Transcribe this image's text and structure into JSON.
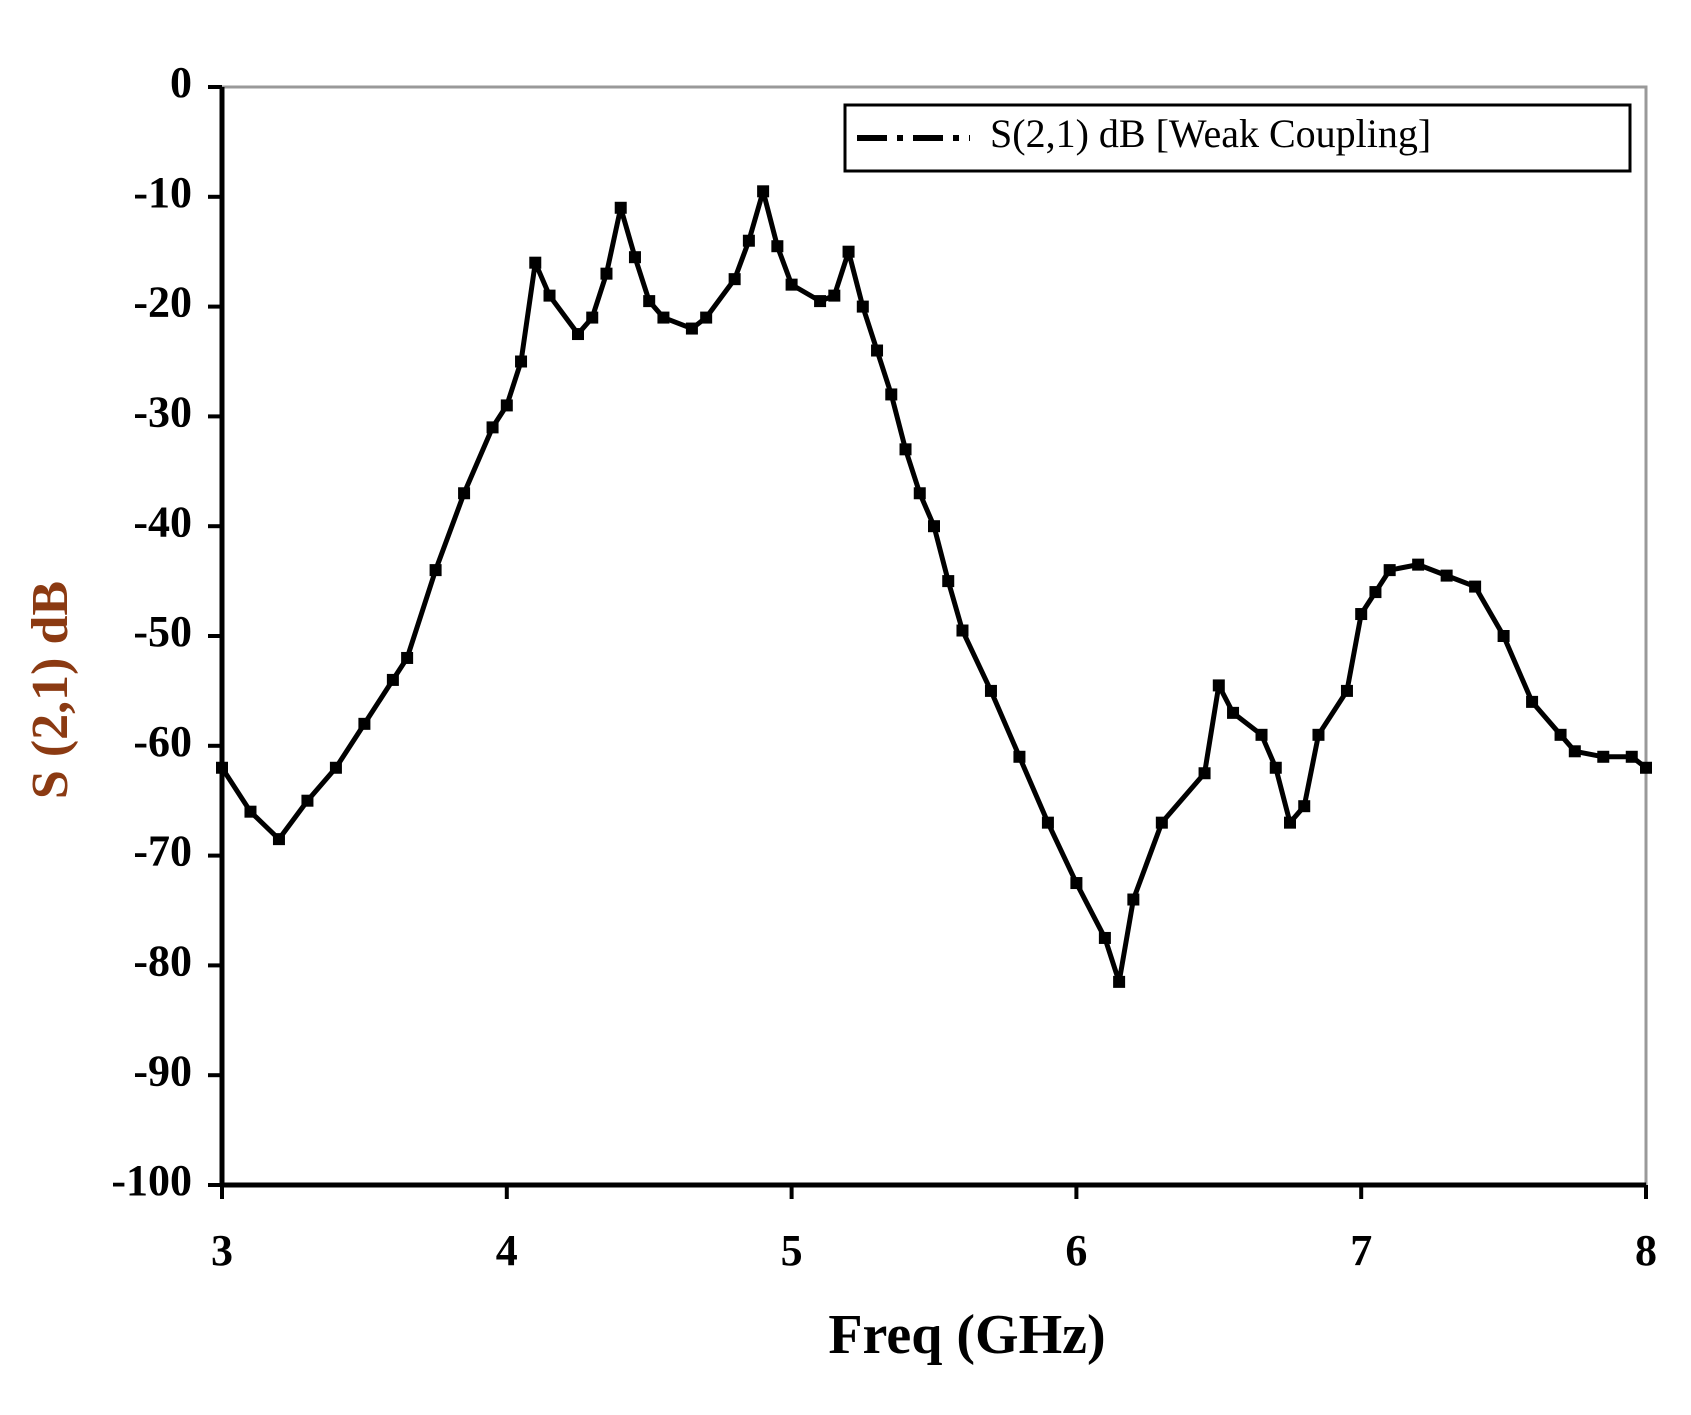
{
  "chart_data": {
    "type": "line",
    "x_label": "Freq (GHz)",
    "y_label": "S (2,1) dB",
    "xlim": [
      3,
      8
    ],
    "xticks": [
      3,
      4,
      5,
      6,
      7,
      8
    ],
    "ylim": [
      -100,
      0
    ],
    "yticks": [
      0,
      -10,
      -20,
      -30,
      -40,
      -50,
      -60,
      -70,
      -80,
      -90,
      -100
    ],
    "legend": "upper right",
    "x": [
      3.0,
      3.1,
      3.2,
      3.3,
      3.4,
      3.5,
      3.6,
      3.65,
      3.75,
      3.85,
      3.95,
      4.0,
      4.05,
      4.1,
      4.15,
      4.25,
      4.3,
      4.35,
      4.4,
      4.45,
      4.5,
      4.55,
      4.65,
      4.7,
      4.8,
      4.85,
      4.9,
      4.95,
      5.0,
      5.1,
      5.15,
      5.2,
      5.25,
      5.3,
      5.35,
      5.4,
      5.45,
      5.5,
      5.55,
      5.6,
      5.7,
      5.8,
      5.9,
      6.0,
      6.1,
      6.15,
      6.2,
      6.3,
      6.45,
      6.5,
      6.55,
      6.65,
      6.7,
      6.75,
      6.8,
      6.85,
      6.95,
      7.0,
      7.05,
      7.1,
      7.2,
      7.3,
      7.4,
      7.5,
      7.6,
      7.7,
      7.75,
      7.85,
      7.95,
      8.0
    ],
    "series": [
      {
        "name": "S(2,1) dB [Weak Coupling]",
        "color": "#000000",
        "values": [
          -62,
          -66,
          -68.5,
          -65,
          -62,
          -58,
          -54,
          -52,
          -44,
          -37,
          -31,
          -29,
          -25,
          -16,
          -19,
          -22.5,
          -21,
          -17,
          -11,
          -15.5,
          -19.5,
          -21,
          -22,
          -21,
          -17.5,
          -14,
          -9.5,
          -14.5,
          -18,
          -19.5,
          -19,
          -15,
          -20,
          -24,
          -28,
          -33,
          -37,
          -40,
          -45,
          -49.5,
          -55,
          -61,
          -67,
          -72.5,
          -77.5,
          -81.5,
          -74,
          -67,
          -62.5,
          -54.5,
          -57,
          -59,
          -62,
          -67,
          -65.5,
          -59,
          -55,
          -48,
          -46,
          -44,
          -43.5,
          -44.5,
          -45.5,
          -50,
          -56,
          -59,
          -60.5,
          -61,
          -61,
          -62
        ]
      }
    ]
  }
}
